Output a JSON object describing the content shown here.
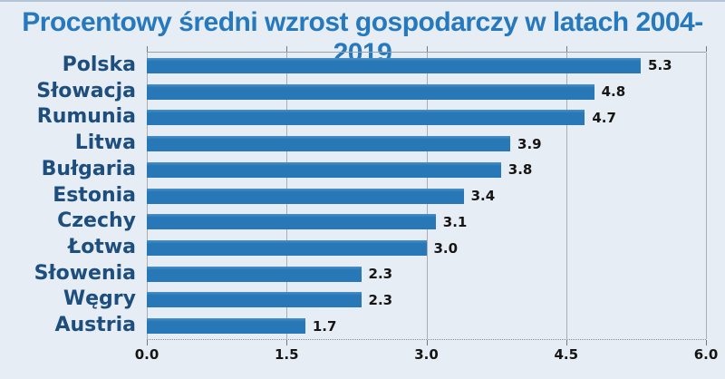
{
  "title": "Procentowy średni wzrost gospodarczy w latach 2004-2019",
  "colors": {
    "background": "#e7edf4",
    "top_edge": "#b3c4d6",
    "bar": "#2878b8",
    "title_text": "#2779be",
    "category_text": "#1d4e7d",
    "value_text": "#151515",
    "gridline": "#a9aeb4",
    "tick": "#6f7a84"
  },
  "chart_data": {
    "type": "bar",
    "orientation": "horizontal",
    "title": "Procentowy średni wzrost gospodarczy w latach 2004-2019",
    "categories": [
      "Polska",
      "Słowacja",
      "Rumunia",
      "Litwa",
      "Bułgaria",
      "Estonia",
      "Czechy",
      "Łotwa",
      "Słowenia",
      "Węgry",
      "Austria"
    ],
    "values": [
      5.3,
      4.8,
      4.7,
      3.9,
      3.8,
      3.4,
      3.1,
      3.0,
      2.3,
      2.3,
      1.7
    ],
    "value_labels": [
      "5.3",
      "4.8",
      "4.7",
      "3.9",
      "3.8",
      "3.4",
      "3.1",
      "3.0",
      "2.3",
      "2.3",
      "1.7"
    ],
    "xlabel": "",
    "ylabel": "",
    "xlim": [
      0,
      6
    ],
    "xticks": [
      "0.0",
      "1.5",
      "3.0",
      "4.5",
      "6.0"
    ],
    "grid": true,
    "legend": false
  }
}
